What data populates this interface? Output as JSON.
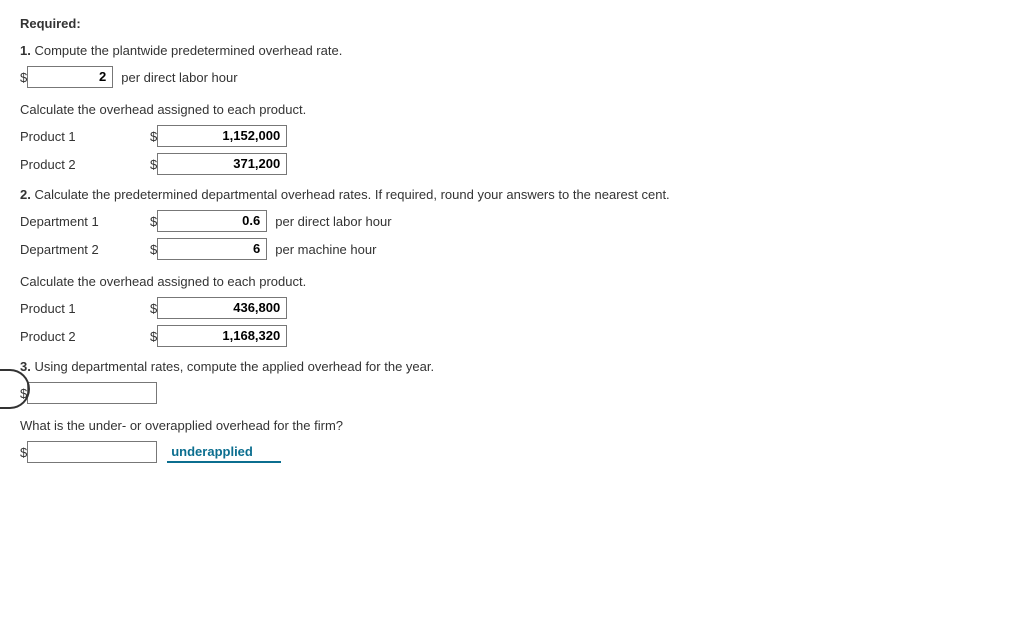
{
  "heading": "Required:",
  "q1": {
    "number": "1.",
    "text": "Compute the plantwide predetermined overhead rate.",
    "rate_value": "2",
    "rate_unit": "per direct labor hour",
    "sub_text": "Calculate the overhead assigned to each product.",
    "products": [
      {
        "label": "Product 1",
        "value": "1,152,000"
      },
      {
        "label": "Product 2",
        "value": "371,200"
      }
    ]
  },
  "q2": {
    "number": "2.",
    "text": "Calculate the predetermined departmental overhead rates. If required, round your answers to the nearest cent.",
    "departments": [
      {
        "label": "Department 1",
        "value": "0.6",
        "unit": "per direct labor hour"
      },
      {
        "label": "Department 2",
        "value": "6",
        "unit": "per machine hour"
      }
    ],
    "sub_text": "Calculate the overhead assigned to each product.",
    "products": [
      {
        "label": "Product 1",
        "value": "436,800"
      },
      {
        "label": "Product 2",
        "value": "1,168,320"
      }
    ]
  },
  "q3": {
    "number": "3.",
    "text": "Using departmental rates, compute the applied overhead for the year.",
    "applied_value": "",
    "sub_text": "What is the under- or overapplied overhead for the firm?",
    "diff_value": "",
    "status": "underapplied"
  },
  "currency": "$"
}
